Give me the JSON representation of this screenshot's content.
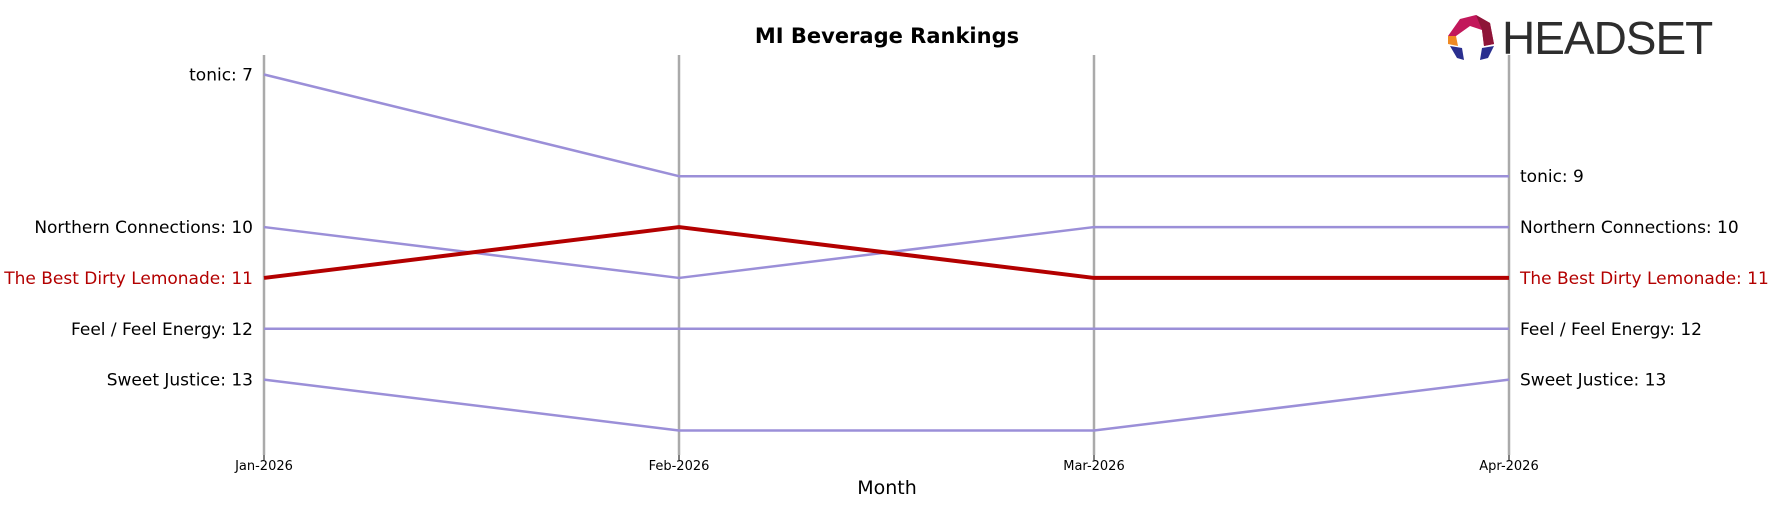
{
  "logo": {
    "text": "HEADSET"
  },
  "chart_data": {
    "type": "line",
    "title": "MI Beverage Rankings",
    "xlabel": "Month",
    "ylabel": "",
    "categories": [
      "Jan-2026",
      "Feb-2026",
      "Mar-2026",
      "Apr-2026"
    ],
    "y_inverted": true,
    "ylim": [
      15.3,
      6.6
    ],
    "grid": "vertical",
    "series": [
      {
        "name": "tonic",
        "values": [
          7,
          9,
          9,
          9
        ],
        "color": "#9b8fd8",
        "highlight": false
      },
      {
        "name": "Northern Connections",
        "values": [
          10,
          11,
          10,
          10
        ],
        "color": "#9b8fd8",
        "highlight": false
      },
      {
        "name": "The Best Dirty Lemonade",
        "values": [
          11,
          10,
          11,
          11
        ],
        "color": "#b30000",
        "highlight": true
      },
      {
        "name": "Feel / Feel Energy",
        "values": [
          12,
          12,
          12,
          12
        ],
        "color": "#9b8fd8",
        "highlight": false
      },
      {
        "name": "Sweet Justice",
        "values": [
          13,
          14,
          14,
          13
        ],
        "color": "#9b8fd8",
        "highlight": false
      }
    ]
  }
}
